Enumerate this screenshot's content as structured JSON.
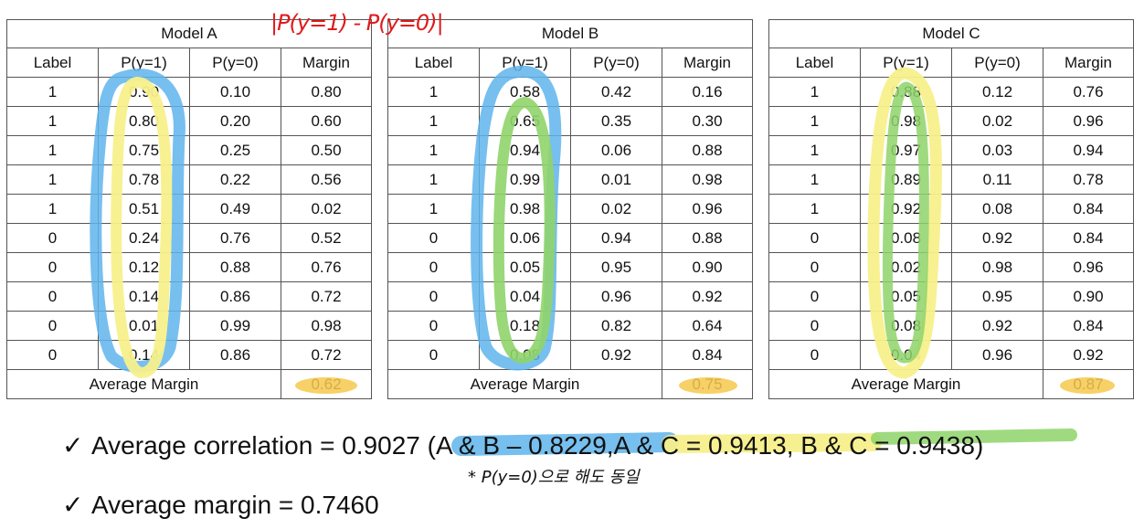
{
  "tables": [
    {
      "title": "Model A",
      "headers": [
        "Label",
        "P(y=1)",
        "P(y=0)",
        "Margin"
      ],
      "rows": [
        [
          "1",
          "0.90",
          "0.10",
          "0.80"
        ],
        [
          "1",
          "0.80",
          "0.20",
          "0.60"
        ],
        [
          "1",
          "0.75",
          "0.25",
          "0.50"
        ],
        [
          "1",
          "0.78",
          "0.22",
          "0.56"
        ],
        [
          "1",
          "0.51",
          "0.49",
          "0.02"
        ],
        [
          "0",
          "0.24",
          "0.76",
          "0.52"
        ],
        [
          "0",
          "0.12",
          "0.88",
          "0.76"
        ],
        [
          "0",
          "0.14",
          "0.86",
          "0.72"
        ],
        [
          "0",
          "0.01",
          "0.99",
          "0.98"
        ],
        [
          "0",
          "0.14",
          "0.86",
          "0.72"
        ]
      ],
      "footer_label": "Average Margin",
      "footer_value": "0.62"
    },
    {
      "title": "Model B",
      "headers": [
        "Label",
        "P(y=1)",
        "P(y=0)",
        "Margin"
      ],
      "rows": [
        [
          "1",
          "0.58",
          "0.42",
          "0.16"
        ],
        [
          "1",
          "0.65",
          "0.35",
          "0.30"
        ],
        [
          "1",
          "0.94",
          "0.06",
          "0.88"
        ],
        [
          "1",
          "0.99",
          "0.01",
          "0.98"
        ],
        [
          "1",
          "0.98",
          "0.02",
          "0.96"
        ],
        [
          "0",
          "0.06",
          "0.94",
          "0.88"
        ],
        [
          "0",
          "0.05",
          "0.95",
          "0.90"
        ],
        [
          "0",
          "0.04",
          "0.96",
          "0.92"
        ],
        [
          "0",
          "0.18",
          "0.82",
          "0.64"
        ],
        [
          "0",
          "0.08",
          "0.92",
          "0.84"
        ]
      ],
      "footer_label": "Average Margin",
      "footer_value": "0.75"
    },
    {
      "title": "Model C",
      "headers": [
        "Label",
        "P(y=1)",
        "P(y=0)",
        "Margin"
      ],
      "rows": [
        [
          "1",
          "0.88",
          "0.12",
          "0.76"
        ],
        [
          "1",
          "0.98",
          "0.02",
          "0.96"
        ],
        [
          "1",
          "0.97",
          "0.03",
          "0.94"
        ],
        [
          "1",
          "0.89",
          "0.11",
          "0.78"
        ],
        [
          "1",
          "0.92",
          "0.08",
          "0.84"
        ],
        [
          "0",
          "0.08",
          "0.92",
          "0.84"
        ],
        [
          "0",
          "0.02",
          "0.98",
          "0.96"
        ],
        [
          "0",
          "0.05",
          "0.95",
          "0.90"
        ],
        [
          "0",
          "0.08",
          "0.92",
          "0.84"
        ],
        [
          "0",
          "0.04",
          "0.96",
          "0.92"
        ]
      ],
      "footer_label": "Average Margin",
      "footer_value": "0.87"
    }
  ],
  "annotations": {
    "margin_formula": "|P(y=1) - P(y=0)|",
    "pair_note": "* P(y=0)으로 해도 동일"
  },
  "summary": {
    "check_glyph": "✓",
    "line1_prefix": "Average correlation = 0.9027 (",
    "pair_ab": "A & B – 0.8229",
    "pair_ac": "A & C = 0.9413",
    "pair_bc": "B & C = 0.9438",
    "line1_suffix": ")",
    "line2": "Average margin = 0.7460"
  },
  "colors": {
    "highlight_blue": "#5fb4ec",
    "highlight_yellow": "#f7f08c",
    "highlight_green": "#8fd46a",
    "margin_highlight": "#f6c94e",
    "annotation_red": "#e01b1b"
  }
}
